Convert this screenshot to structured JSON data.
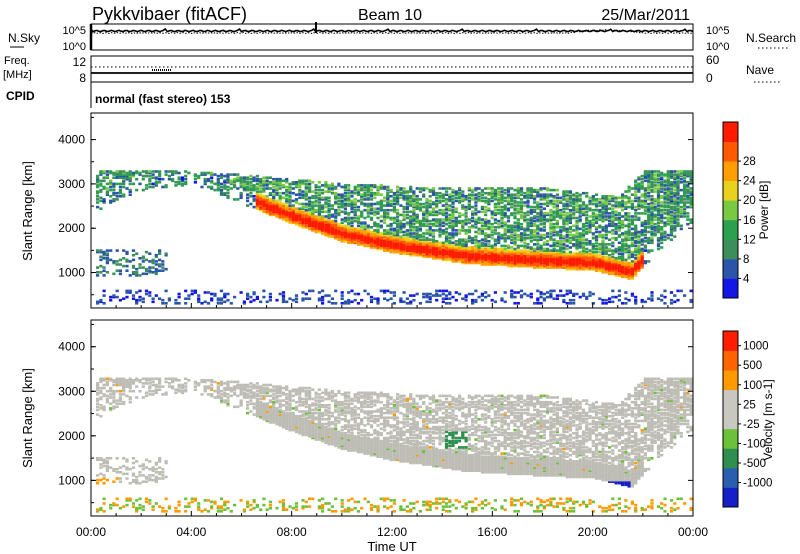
{
  "header": {
    "station": "Pykkvibaer (fitACF)",
    "beam": "Beam 10",
    "date": "25/Mar/2011"
  },
  "nsky_panel": {
    "left_label": "N.Sky",
    "left_ticks": [
      "10^5",
      "10^0"
    ],
    "right_label": "N.Search",
    "right_ticks": [
      "10^5",
      "10^0"
    ]
  },
  "freq_panel": {
    "left_label_1": "Freq.",
    "left_label_2": "[MHz]",
    "left_ticks": [
      "12",
      "8"
    ],
    "right_label": "Nave",
    "right_ticks": [
      "60",
      "0"
    ]
  },
  "cpid": {
    "label": "CPID",
    "text": "normal (fast stereo) 153"
  },
  "colors": {
    "power_scale": [
      "#1515e6",
      "#2b55a8",
      "#3c8f5a",
      "#2ca04f",
      "#7ac943",
      "#e8d21e",
      "#ff9e00",
      "#ff5a00",
      "#ff1a00"
    ],
    "velocity_scale": [
      "#1520c8",
      "#2a5fb0",
      "#2f8f4f",
      "#6dc13a",
      "#c8c8c0",
      "#c8c8c0",
      "#ff9a00",
      "#ff6400",
      "#ff1e00"
    ],
    "ground_scatter": "#bdbdb5"
  },
  "chart_data": [
    {
      "type": "heatmap",
      "name": "power",
      "xlabel": "",
      "ylabel": "Slant Range [km]",
      "xlim": [
        0,
        24
      ],
      "ylim": [
        200,
        4600
      ],
      "yticks": [
        1000,
        2000,
        3000,
        4000
      ],
      "colorbar": {
        "label": "Power [dB]",
        "ticks": [
          "4",
          "8",
          "12",
          "16",
          "20",
          "24",
          "28"
        ],
        "range": [
          0,
          30
        ]
      },
      "scatter_bands": [
        {
          "description": "main echo",
          "time": [
            6,
            22
          ],
          "range_center": [
            2400,
            1300,
            1050,
            1100,
            1350
          ],
          "power_db": 26
        },
        {
          "description": "upper band",
          "time": [
            1,
            22
          ],
          "range_center": [
            3000,
            2900,
            2700,
            2800
          ],
          "power_db": 10
        }
      ]
    },
    {
      "type": "heatmap",
      "name": "velocity",
      "xlabel": "Time UT",
      "ylabel": "Slant Range [km]",
      "xlim": [
        0,
        24
      ],
      "ylim": [
        200,
        4600
      ],
      "yticks": [
        1000,
        2000,
        3000,
        4000
      ],
      "xticks": [
        "00:00",
        "04:00",
        "08:00",
        "12:00",
        "16:00",
        "20:00",
        "00:00"
      ],
      "colorbar": {
        "label": "Velocity [m s-1]",
        "ticks": [
          "1000",
          "500",
          "100",
          "25",
          "-25",
          "-100",
          "-500",
          "-1000"
        ],
        "range": [
          -1000,
          1000
        ]
      }
    }
  ]
}
